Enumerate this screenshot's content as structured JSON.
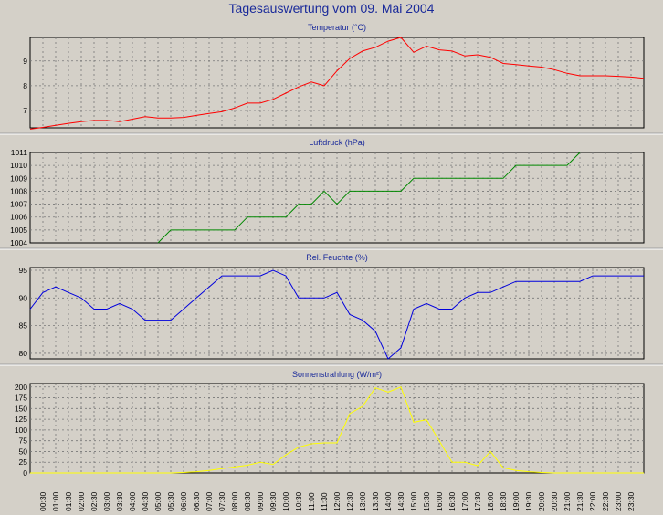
{
  "page": {
    "title": "Tagesauswertung vom 09. Mai 2004"
  },
  "time_labels": [
    "00:30",
    "01:00",
    "01:30",
    "02:00",
    "02:30",
    "03:00",
    "03:30",
    "04:00",
    "04:30",
    "05:00",
    "05:30",
    "06:00",
    "06:30",
    "07:00",
    "07:30",
    "08:00",
    "08:30",
    "09:00",
    "09:30",
    "10:00",
    "10:30",
    "11:00",
    "11:30",
    "12:00",
    "12:30",
    "13:00",
    "13:30",
    "14:00",
    "14:30",
    "15:00",
    "15:30",
    "16:00",
    "16:30",
    "17:00",
    "17:30",
    "18:00",
    "18:30",
    "19:00",
    "19:30",
    "20:00",
    "20:30",
    "21:00",
    "21:30",
    "22:00",
    "22:30",
    "23:00",
    "23:30"
  ],
  "chart_data": [
    {
      "type": "line",
      "title": "Temperatur (°C)",
      "color": "#ff0000",
      "ylim": [
        6.3,
        9.95
      ],
      "yticks": [
        7,
        8,
        9
      ],
      "x": [
        "00:00",
        "00:30",
        "01:00",
        "01:30",
        "02:00",
        "02:30",
        "03:00",
        "03:30",
        "04:00",
        "04:30",
        "05:00",
        "05:30",
        "06:00",
        "06:30",
        "07:00",
        "07:30",
        "08:00",
        "08:30",
        "09:00",
        "09:30",
        "10:00",
        "10:30",
        "11:00",
        "11:30",
        "12:00",
        "12:30",
        "13:00",
        "13:30",
        "14:00",
        "14:30",
        "15:00",
        "15:30",
        "16:00",
        "16:30",
        "17:00",
        "17:30",
        "18:00",
        "18:30",
        "19:00",
        "19:30",
        "20:00",
        "20:30",
        "21:00",
        "21:30",
        "22:00",
        "22:30",
        "23:00",
        "23:30",
        "24:00"
      ],
      "values": [
        6.25,
        6.32,
        6.4,
        6.48,
        6.55,
        6.6,
        6.6,
        6.55,
        6.65,
        6.75,
        6.7,
        6.7,
        6.72,
        6.8,
        6.88,
        6.95,
        7.1,
        7.3,
        7.3,
        7.45,
        7.7,
        7.95,
        8.15,
        8.0,
        8.6,
        9.1,
        9.4,
        9.55,
        9.8,
        9.95,
        9.35,
        9.6,
        9.45,
        9.4,
        9.2,
        9.25,
        9.15,
        8.9,
        8.85,
        8.8,
        8.75,
        8.65,
        8.5,
        8.4,
        8.4,
        8.4,
        8.38,
        8.35,
        8.3
      ]
    },
    {
      "type": "line",
      "title": "Luftdruck (hPa)",
      "color": "#008800",
      "ylim": [
        1004,
        1011
      ],
      "yticks": [
        1004,
        1005,
        1006,
        1007,
        1008,
        1009,
        1010,
        1011
      ],
      "x": [
        "05:00",
        "05:30",
        "06:00",
        "06:30",
        "07:00",
        "07:30",
        "08:00",
        "08:30",
        "09:00",
        "09:30",
        "10:00",
        "10:30",
        "11:00",
        "11:30",
        "12:00",
        "12:30",
        "13:00",
        "13:30",
        "14:00",
        "14:30",
        "15:00",
        "15:30",
        "16:00",
        "16:30",
        "17:00",
        "17:30",
        "18:00",
        "18:30",
        "19:00",
        "19:30",
        "20:00",
        "20:30",
        "21:00",
        "21:30"
      ],
      "values": [
        1004,
        1005,
        1005,
        1005,
        1005,
        1005,
        1005,
        1006,
        1006,
        1006,
        1006,
        1007,
        1007,
        1008,
        1007,
        1008,
        1008,
        1008,
        1008,
        1008,
        1009,
        1009,
        1009,
        1009,
        1009,
        1009,
        1009,
        1009,
        1010,
        1010,
        1010,
        1010,
        1010,
        1011
      ]
    },
    {
      "type": "line",
      "title": "Rel. Feuchte (%)",
      "color": "#0000dd",
      "ylim": [
        79,
        95.5
      ],
      "yticks": [
        80,
        85,
        90,
        95
      ],
      "x": [
        "00:00",
        "00:30",
        "01:00",
        "01:30",
        "02:00",
        "02:30",
        "03:00",
        "03:30",
        "04:00",
        "04:30",
        "05:00",
        "05:30",
        "06:00",
        "06:30",
        "07:00",
        "07:30",
        "08:00",
        "08:30",
        "09:00",
        "09:30",
        "10:00",
        "10:30",
        "11:00",
        "11:30",
        "12:00",
        "12:30",
        "13:00",
        "13:30",
        "14:00",
        "14:30",
        "15:00",
        "15:30",
        "16:00",
        "16:30",
        "17:00",
        "17:30",
        "18:00",
        "18:30",
        "19:00",
        "19:30",
        "20:00",
        "20:30",
        "21:00",
        "21:30",
        "22:00",
        "22:30",
        "23:00",
        "23:30",
        "24:00"
      ],
      "values": [
        88,
        91,
        92,
        91,
        90,
        88,
        88,
        89,
        88,
        86,
        86,
        86,
        88,
        90,
        92,
        94,
        94,
        94,
        94,
        95,
        94,
        90,
        90,
        90,
        91,
        87,
        86,
        84,
        79,
        81,
        88,
        89,
        88,
        88,
        90,
        91,
        91,
        92,
        93,
        93,
        93,
        93,
        93,
        93,
        94,
        94,
        94,
        94,
        94
      ]
    },
    {
      "type": "line",
      "title": "Sonnenstrahlung (W/m²)",
      "color": "#ffff00",
      "ylim": [
        0,
        208
      ],
      "yticks": [
        0,
        25,
        50,
        75,
        100,
        125,
        150,
        175,
        200
      ],
      "x": [
        "00:00",
        "00:30",
        "01:00",
        "01:30",
        "02:00",
        "02:30",
        "03:00",
        "03:30",
        "04:00",
        "04:30",
        "05:00",
        "05:30",
        "06:00",
        "06:30",
        "07:00",
        "07:30",
        "08:00",
        "08:30",
        "09:00",
        "09:30",
        "10:00",
        "10:30",
        "11:00",
        "11:30",
        "12:00",
        "12:30",
        "13:00",
        "13:30",
        "14:00",
        "14:30",
        "15:00",
        "15:30",
        "16:00",
        "16:30",
        "17:00",
        "17:30",
        "18:00",
        "18:30",
        "19:00",
        "19:30",
        "20:00",
        "20:30",
        "21:00",
        "21:30",
        "22:00",
        "22:30",
        "23:00",
        "23:30",
        "24:00"
      ],
      "values": [
        0,
        0,
        0,
        0,
        0,
        0,
        0,
        0,
        0,
        0,
        0,
        0,
        1,
        3,
        6,
        10,
        14,
        18,
        25,
        20,
        42,
        60,
        68,
        70,
        70,
        138,
        155,
        198,
        188,
        200,
        118,
        124,
        75,
        25,
        25,
        17,
        50,
        12,
        6,
        3,
        1,
        0,
        0,
        0,
        0,
        0,
        0,
        0,
        0
      ]
    }
  ]
}
